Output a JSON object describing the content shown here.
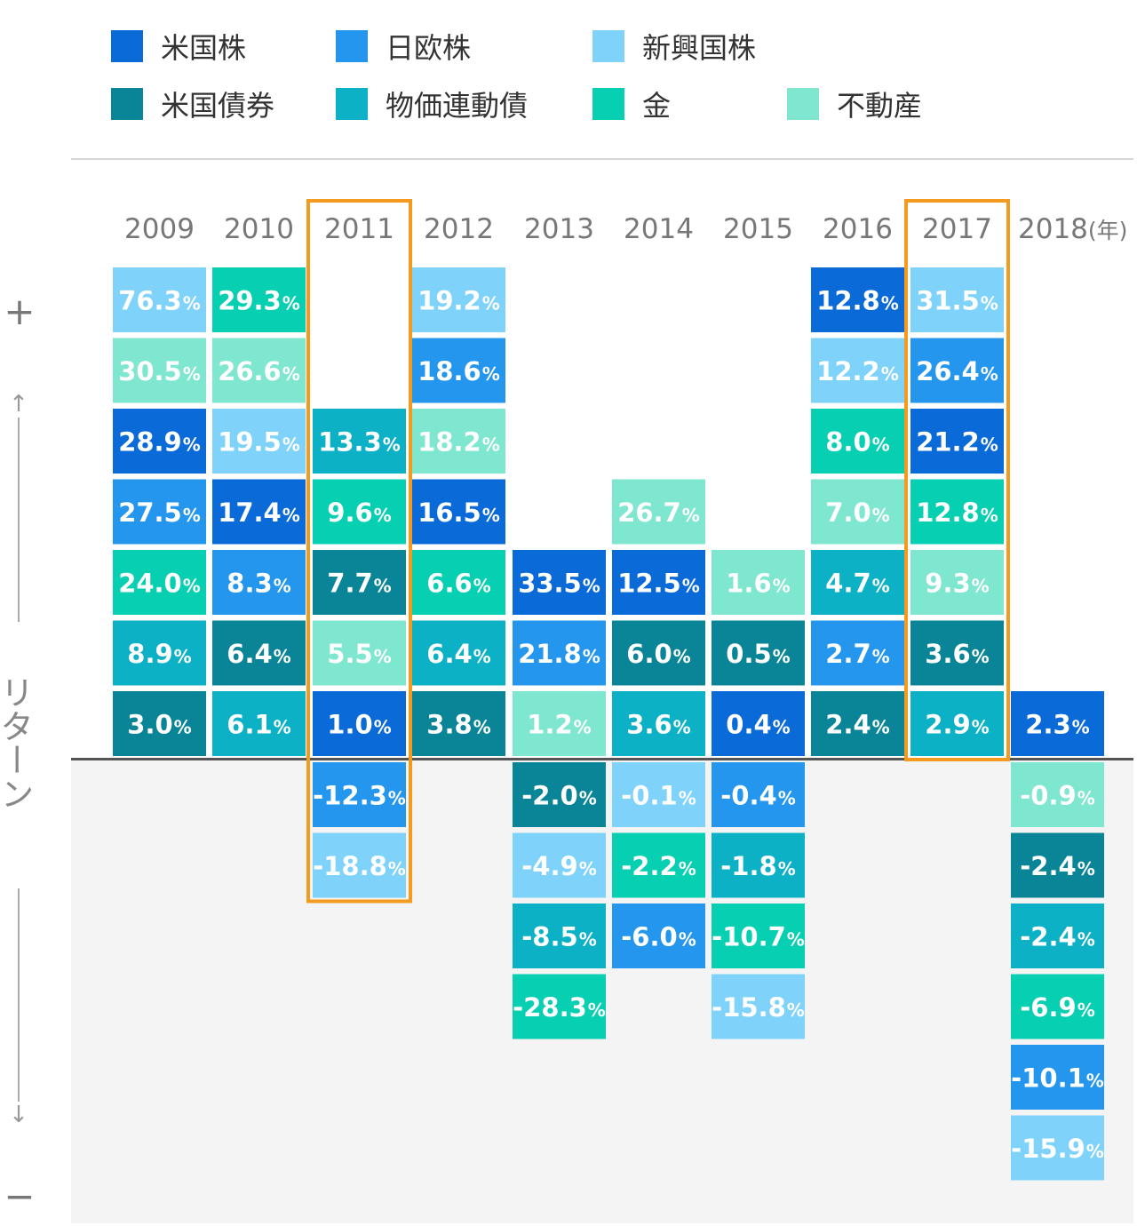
{
  "legend": {
    "items": [
      {
        "label": "米国株",
        "color": "#0a6ad8"
      },
      {
        "label": "日欧株",
        "color": "#2496ee"
      },
      {
        "label": "新興国株",
        "color": "#7fd3fb"
      },
      {
        "label": "米国債券",
        "color": "#0a8598"
      },
      {
        "label": "物価連動債",
        "color": "#0db1c6"
      },
      {
        "label": "金",
        "color": "#06cfb2"
      },
      {
        "label": "不動産",
        "color": "#7fe6d0"
      }
    ]
  },
  "axis": {
    "plus": "+",
    "minus": "−",
    "up_arrow": "↑",
    "down_arrow": "↓",
    "title": "リターン"
  },
  "chart_data": {
    "type": "table",
    "year_unit": "(年)",
    "percent_sign": "%",
    "highlight_years": [
      "2011",
      "2017"
    ],
    "years": [
      {
        "year": "2009",
        "positive": [
          {
            "asset": "新興国株",
            "value": "76.3"
          },
          {
            "asset": "不動産",
            "value": "30.5"
          },
          {
            "asset": "米国株",
            "value": "28.9"
          },
          {
            "asset": "日欧株",
            "value": "27.5"
          },
          {
            "asset": "金",
            "value": "24.0"
          },
          {
            "asset": "物価連動債",
            "value": "8.9"
          },
          {
            "asset": "米国債券",
            "value": "3.0"
          }
        ],
        "negative": []
      },
      {
        "year": "2010",
        "positive": [
          {
            "asset": "金",
            "value": "29.3"
          },
          {
            "asset": "不動産",
            "value": "26.6"
          },
          {
            "asset": "新興国株",
            "value": "19.5"
          },
          {
            "asset": "米国株",
            "value": "17.4"
          },
          {
            "asset": "日欧株",
            "value": "8.3"
          },
          {
            "asset": "米国債券",
            "value": "6.4"
          },
          {
            "asset": "物価連動債",
            "value": "6.1"
          }
        ],
        "negative": []
      },
      {
        "year": "2011",
        "positive": [
          {
            "asset": "物価連動債",
            "value": "13.3"
          },
          {
            "asset": "金",
            "value": "9.6"
          },
          {
            "asset": "米国債券",
            "value": "7.7"
          },
          {
            "asset": "不動産",
            "value": "5.5"
          },
          {
            "asset": "米国株",
            "value": "1.0"
          }
        ],
        "negative": [
          {
            "asset": "日欧株",
            "value": "-12.3"
          },
          {
            "asset": "新興国株",
            "value": "-18.8"
          }
        ]
      },
      {
        "year": "2012",
        "positive": [
          {
            "asset": "新興国株",
            "value": "19.2"
          },
          {
            "asset": "日欧株",
            "value": "18.6"
          },
          {
            "asset": "不動産",
            "value": "18.2"
          },
          {
            "asset": "米国株",
            "value": "16.5"
          },
          {
            "asset": "金",
            "value": "6.6"
          },
          {
            "asset": "物価連動債",
            "value": "6.4"
          },
          {
            "asset": "米国債券",
            "value": "3.8"
          }
        ],
        "negative": []
      },
      {
        "year": "2013",
        "positive": [
          {
            "asset": "米国株",
            "value": "33.5"
          },
          {
            "asset": "日欧株",
            "value": "21.8"
          },
          {
            "asset": "不動産",
            "value": "1.2"
          }
        ],
        "negative": [
          {
            "asset": "米国債券",
            "value": "-2.0"
          },
          {
            "asset": "新興国株",
            "value": "-4.9"
          },
          {
            "asset": "物価連動債",
            "value": "-8.5"
          },
          {
            "asset": "金",
            "value": "-28.3"
          }
        ]
      },
      {
        "year": "2014",
        "positive": [
          {
            "asset": "不動産",
            "value": "26.7"
          },
          {
            "asset": "米国株",
            "value": "12.5"
          },
          {
            "asset": "米国債券",
            "value": "6.0"
          },
          {
            "asset": "物価連動債",
            "value": "3.6"
          }
        ],
        "negative": [
          {
            "asset": "新興国株",
            "value": "-0.1"
          },
          {
            "asset": "金",
            "value": "-2.2"
          },
          {
            "asset": "日欧株",
            "value": "-6.0"
          }
        ]
      },
      {
        "year": "2015",
        "positive": [
          {
            "asset": "不動産",
            "value": "1.6"
          },
          {
            "asset": "米国債券",
            "value": "0.5"
          },
          {
            "asset": "米国株",
            "value": "0.4"
          }
        ],
        "negative": [
          {
            "asset": "日欧株",
            "value": "-0.4"
          },
          {
            "asset": "物価連動債",
            "value": "-1.8"
          },
          {
            "asset": "金",
            "value": "-10.7"
          },
          {
            "asset": "新興国株",
            "value": "-15.8"
          }
        ]
      },
      {
        "year": "2016",
        "positive": [
          {
            "asset": "米国株",
            "value": "12.8"
          },
          {
            "asset": "新興国株",
            "value": "12.2"
          },
          {
            "asset": "金",
            "value": "8.0"
          },
          {
            "asset": "不動産",
            "value": "7.0"
          },
          {
            "asset": "物価連動債",
            "value": "4.7"
          },
          {
            "asset": "日欧株",
            "value": "2.7"
          },
          {
            "asset": "米国債券",
            "value": "2.4"
          }
        ],
        "negative": []
      },
      {
        "year": "2017",
        "positive": [
          {
            "asset": "新興国株",
            "value": "31.5"
          },
          {
            "asset": "日欧株",
            "value": "26.4"
          },
          {
            "asset": "米国株",
            "value": "21.2"
          },
          {
            "asset": "金",
            "value": "12.8"
          },
          {
            "asset": "不動産",
            "value": "9.3"
          },
          {
            "asset": "米国債券",
            "value": "3.6"
          },
          {
            "asset": "物価連動債",
            "value": "2.9"
          }
        ],
        "negative": []
      },
      {
        "year": "2018",
        "positive": [
          {
            "asset": "米国株",
            "value": "2.3"
          }
        ],
        "negative": [
          {
            "asset": "不動産",
            "value": "-0.9"
          },
          {
            "asset": "米国債券",
            "value": "-2.4"
          },
          {
            "asset": "物価連動債",
            "value": "-2.4"
          },
          {
            "asset": "金",
            "value": "-6.9"
          },
          {
            "asset": "日欧株",
            "value": "-10.1"
          },
          {
            "asset": "新興国株",
            "value": "-15.9"
          }
        ]
      }
    ]
  }
}
